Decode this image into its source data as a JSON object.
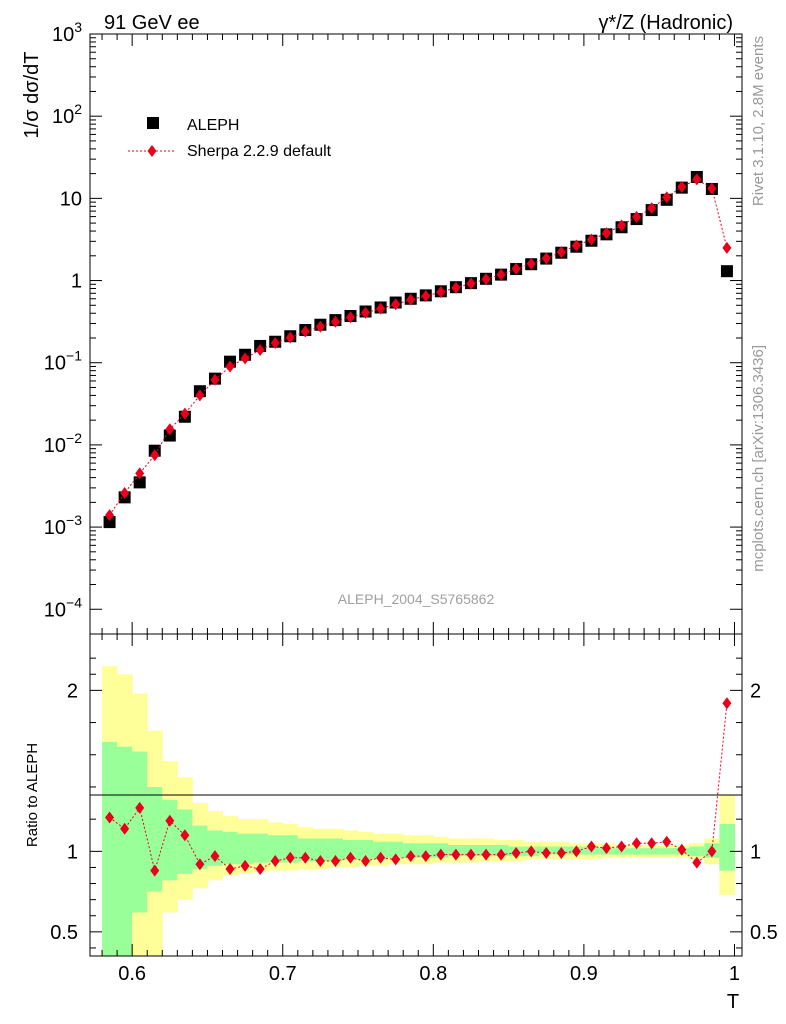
{
  "header": {
    "left_label": "91 GeV ee",
    "right_label": "γ*/Z (Hadronic)"
  },
  "side": {
    "rivet_label": "Rivet 3.1.10,  2.8M events",
    "mcplots_label": "mcplots.cern.ch [arXiv:1306.3436]"
  },
  "chart_data": [
    {
      "type": "scatter",
      "title": "",
      "analysis_label": "ALEPH_2004_S5765862",
      "xlabel": "T",
      "ylabel": "1/σ dσ/dT",
      "xlim": [
        0.572,
        1.005
      ],
      "ylim": [
        5e-05,
        1000
      ],
      "yscale": "log",
      "grid": false,
      "legend_position": "top-left",
      "y_tick_labels": [
        "10^-4",
        "10^-3",
        "10^-2",
        "10^-1",
        "1",
        "10",
        "10^2",
        "10^3"
      ],
      "colors": {
        "data": "#000000",
        "mc": "#e8001c"
      },
      "x": [
        0.585,
        0.595,
        0.605,
        0.615,
        0.625,
        0.635,
        0.645,
        0.655,
        0.665,
        0.675,
        0.685,
        0.695,
        0.705,
        0.715,
        0.725,
        0.735,
        0.745,
        0.755,
        0.765,
        0.775,
        0.785,
        0.795,
        0.805,
        0.815,
        0.825,
        0.835,
        0.845,
        0.855,
        0.865,
        0.875,
        0.885,
        0.895,
        0.905,
        0.915,
        0.925,
        0.935,
        0.945,
        0.955,
        0.965,
        0.975,
        0.985,
        0.995
      ],
      "series": [
        {
          "name": "ALEPH",
          "values": [
            0.00115,
            0.0023,
            0.0035,
            0.0085,
            0.013,
            0.022,
            0.045,
            0.064,
            0.103,
            0.125,
            0.16,
            0.18,
            0.21,
            0.25,
            0.29,
            0.33,
            0.37,
            0.42,
            0.47,
            0.54,
            0.6,
            0.66,
            0.74,
            0.83,
            0.93,
            1.05,
            1.18,
            1.38,
            1.58,
            1.85,
            2.18,
            2.58,
            3.05,
            3.65,
            4.45,
            5.6,
            7.2,
            9.6,
            13.5,
            18.2,
            13.0,
            1.3
          ]
        },
        {
          "name": "Sherpa 2.2.9 default",
          "values": [
            0.0014,
            0.0026,
            0.0045,
            0.0075,
            0.0155,
            0.024,
            0.04,
            0.062,
            0.09,
            0.113,
            0.143,
            0.174,
            0.203,
            0.24,
            0.275,
            0.315,
            0.357,
            0.405,
            0.455,
            0.515,
            0.585,
            0.648,
            0.725,
            0.818,
            0.92,
            1.04,
            1.18,
            1.39,
            1.6,
            1.86,
            2.22,
            2.67,
            3.16,
            3.77,
            4.68,
            5.95,
            7.6,
            10.3,
            13.8,
            17.0,
            13.2,
            2.5
          ]
        }
      ]
    },
    {
      "type": "scatter",
      "title": "",
      "xlabel": "T",
      "ylabel": "Ratio to ALEPH",
      "xlim": [
        0.572,
        1.005
      ],
      "ylim": [
        0.35,
        2.35
      ],
      "x_tick_labels": [
        "0.6",
        "0.7",
        "0.8",
        "0.9",
        "1"
      ],
      "y_tick_labels": [
        "0.5",
        "1",
        "2"
      ],
      "colors": {
        "band_inner": "#99ff99",
        "band_outer": "#ffff99",
        "mc": "#e8001c"
      },
      "bin_edges": [
        0.58,
        0.59,
        0.6,
        0.61,
        0.62,
        0.63,
        0.64,
        0.65,
        0.66,
        0.67,
        0.68,
        0.69,
        0.7,
        0.71,
        0.72,
        0.73,
        0.74,
        0.75,
        0.76,
        0.77,
        0.78,
        0.79,
        0.8,
        0.81,
        0.82,
        0.83,
        0.84,
        0.85,
        0.86,
        0.87,
        0.88,
        0.89,
        0.9,
        0.91,
        0.92,
        0.93,
        0.94,
        0.95,
        0.96,
        0.97,
        0.98,
        0.99,
        1.0
      ],
      "band_inner_upper": [
        1.68,
        1.65,
        1.62,
        1.4,
        1.32,
        1.26,
        1.16,
        1.13,
        1.12,
        1.11,
        1.11,
        1.1,
        1.1,
        1.08,
        1.08,
        1.08,
        1.07,
        1.07,
        1.06,
        1.06,
        1.05,
        1.05,
        1.05,
        1.04,
        1.04,
        1.04,
        1.04,
        1.03,
        1.03,
        1.03,
        1.03,
        1.03,
        1.03,
        1.02,
        1.02,
        1.02,
        1.02,
        1.02,
        1.02,
        1.03,
        1.05,
        1.17
      ],
      "band_inner_lower": [
        0.35,
        0.35,
        0.62,
        0.75,
        0.82,
        0.86,
        0.89,
        0.91,
        0.92,
        0.92,
        0.93,
        0.93,
        0.93,
        0.94,
        0.94,
        0.94,
        0.95,
        0.95,
        0.95,
        0.96,
        0.96,
        0.96,
        0.96,
        0.97,
        0.97,
        0.97,
        0.97,
        0.97,
        0.97,
        0.98,
        0.98,
        0.98,
        0.98,
        0.98,
        0.98,
        0.98,
        0.98,
        0.98,
        0.98,
        0.97,
        0.96,
        0.88
      ],
      "band_outer_upper": [
        2.15,
        2.1,
        1.98,
        1.75,
        1.56,
        1.46,
        1.3,
        1.25,
        1.22,
        1.2,
        1.2,
        1.18,
        1.17,
        1.15,
        1.14,
        1.14,
        1.13,
        1.12,
        1.11,
        1.11,
        1.1,
        1.1,
        1.09,
        1.08,
        1.08,
        1.08,
        1.07,
        1.07,
        1.06,
        1.06,
        1.06,
        1.05,
        1.05,
        1.05,
        1.04,
        1.04,
        1.04,
        1.04,
        1.04,
        1.05,
        1.08,
        1.35
      ],
      "band_outer_lower": [
        0.35,
        0.35,
        0.35,
        0.35,
        0.62,
        0.7,
        0.77,
        0.82,
        0.85,
        0.86,
        0.87,
        0.88,
        0.88,
        0.89,
        0.89,
        0.9,
        0.9,
        0.91,
        0.91,
        0.92,
        0.92,
        0.92,
        0.93,
        0.93,
        0.93,
        0.94,
        0.94,
        0.94,
        0.95,
        0.95,
        0.95,
        0.95,
        0.95,
        0.96,
        0.96,
        0.96,
        0.96,
        0.96,
        0.96,
        0.95,
        0.92,
        0.73
      ],
      "series": [
        {
          "name": "Sherpa 2.2.9 default",
          "x": [
            0.585,
            0.595,
            0.605,
            0.615,
            0.625,
            0.635,
            0.645,
            0.655,
            0.665,
            0.675,
            0.685,
            0.695,
            0.705,
            0.715,
            0.725,
            0.735,
            0.745,
            0.755,
            0.765,
            0.775,
            0.785,
            0.795,
            0.805,
            0.815,
            0.825,
            0.835,
            0.845,
            0.855,
            0.865,
            0.875,
            0.885,
            0.895,
            0.905,
            0.915,
            0.925,
            0.935,
            0.945,
            0.955,
            0.965,
            0.975,
            0.985,
            0.995
          ],
          "values": [
            1.21,
            1.14,
            1.27,
            0.88,
            1.19,
            1.1,
            0.92,
            0.97,
            0.89,
            0.91,
            0.89,
            0.94,
            0.96,
            0.96,
            0.94,
            0.94,
            0.96,
            0.94,
            0.96,
            0.95,
            0.97,
            0.97,
            0.98,
            0.98,
            0.98,
            0.98,
            0.98,
            0.99,
            1.0,
            0.99,
            0.99,
            1.0,
            1.03,
            1.02,
            1.03,
            1.05,
            1.05,
            1.06,
            1.01,
            0.93,
            1.0,
            1.92
          ]
        }
      ]
    }
  ]
}
